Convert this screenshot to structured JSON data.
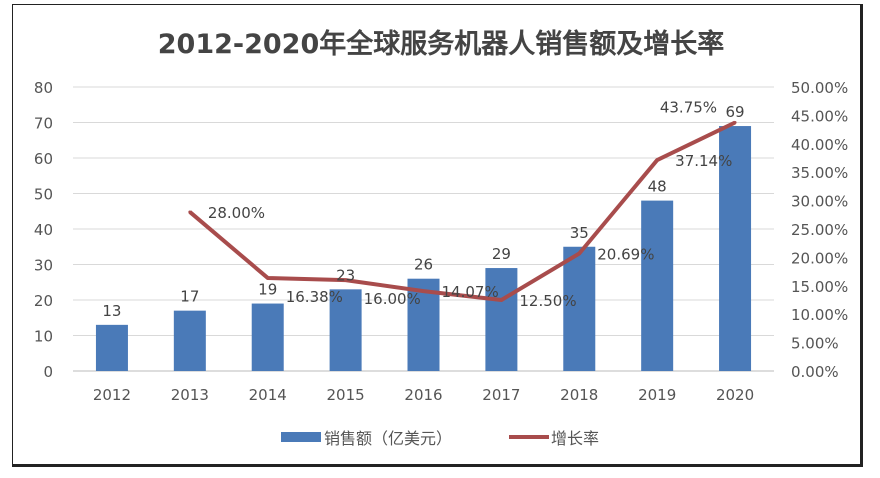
{
  "chart_data": {
    "type": "bar+line",
    "title": "2012-2020年全球服务机器人销售额及增长率",
    "categories": [
      "2012",
      "2013",
      "2014",
      "2015",
      "2016",
      "2017",
      "2018",
      "2019",
      "2020"
    ],
    "series": [
      {
        "name": "销售额（亿美元）",
        "type": "bar",
        "axis": "left",
        "color": "#4a7ab8",
        "values": [
          13,
          17,
          19,
          23,
          26,
          29,
          35,
          48,
          69
        ],
        "labels": [
          "13",
          "17",
          "19",
          "23",
          "26",
          "29",
          "35",
          "48",
          "69"
        ]
      },
      {
        "name": "增长率",
        "type": "line",
        "axis": "right",
        "color": "#a84c4c",
        "values": [
          null,
          28.0,
          16.38,
          16.0,
          14.07,
          12.5,
          20.69,
          37.14,
          43.75
        ],
        "labels": [
          "",
          "28.00%",
          "16.38%",
          "16.00%",
          "14.07%",
          "12.50%",
          "20.69%",
          "37.14%",
          "43.75%"
        ]
      }
    ],
    "left_axis": {
      "ylim": [
        0,
        80
      ],
      "ticks": [
        "0",
        "10",
        "20",
        "30",
        "40",
        "50",
        "60",
        "70",
        "80"
      ]
    },
    "right_axis": {
      "ylim": [
        0,
        50
      ],
      "ticks": [
        "0.00%",
        "5.00%",
        "10.00%",
        "15.00%",
        "20.00%",
        "25.00%",
        "30.00%",
        "35.00%",
        "40.00%",
        "45.00%",
        "50.00%"
      ]
    },
    "grid": true,
    "legend": "bottom"
  }
}
